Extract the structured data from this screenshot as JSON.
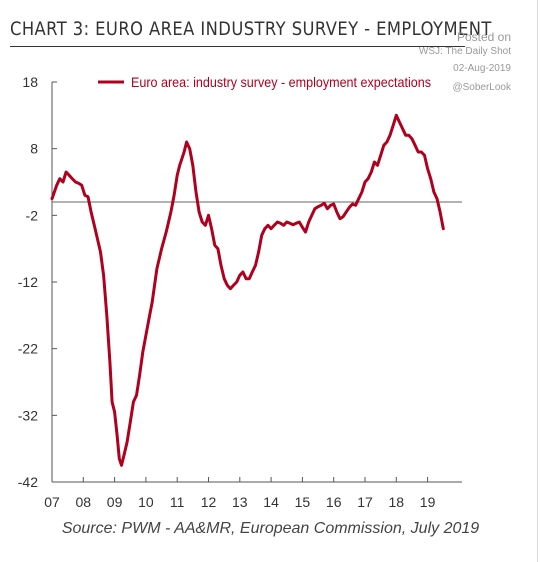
{
  "title": "CHART 3: EURO AREA INDUSTRY SURVEY - EMPLOYMENT",
  "watermark": {
    "line1": "Posted on",
    "line2": "WSJ: The Daily Shot",
    "line3": "02-Aug-2019",
    "line4": "@SoberLook"
  },
  "source": "Source: PWM - AA&MR, European Commission, July 2019",
  "colors": {
    "series": "#b0001e",
    "axis": "#555555",
    "text": "#333333"
  },
  "chart_data": {
    "type": "line",
    "legend_position": "top",
    "grid": false,
    "ylim": [
      -42,
      18
    ],
    "yticks": [
      18,
      8,
      -2,
      -12,
      -22,
      -32,
      -42
    ],
    "xticks": [
      "07",
      "08",
      "09",
      "10",
      "11",
      "12",
      "13",
      "14",
      "15",
      "16",
      "17",
      "18",
      "19"
    ],
    "xlim": [
      2007.0,
      2019.8
    ],
    "series": [
      {
        "name": "Euro area: industry survey - employment expectations",
        "color": "#b0001e",
        "x": [
          2007.0,
          2007.15,
          2007.25,
          2007.35,
          2007.45,
          2007.55,
          2007.65,
          2007.75,
          2007.85,
          2007.95,
          2008.05,
          2008.15,
          2008.25,
          2008.35,
          2008.45,
          2008.55,
          2008.65,
          2008.75,
          2008.85,
          2008.92,
          2009.0,
          2009.08,
          2009.15,
          2009.22,
          2009.3,
          2009.4,
          2009.5,
          2009.6,
          2009.7,
          2009.8,
          2009.9,
          2010.0,
          2010.1,
          2010.2,
          2010.35,
          2010.5,
          2010.65,
          2010.8,
          2010.9,
          2011.0,
          2011.08,
          2011.15,
          2011.22,
          2011.3,
          2011.4,
          2011.5,
          2011.6,
          2011.7,
          2011.8,
          2011.9,
          2012.0,
          2012.1,
          2012.2,
          2012.3,
          2012.4,
          2012.5,
          2012.6,
          2012.7,
          2012.8,
          2012.9,
          2013.0,
          2013.1,
          2013.2,
          2013.3,
          2013.4,
          2013.5,
          2013.6,
          2013.7,
          2013.8,
          2013.9,
          2014.0,
          2014.1,
          2014.2,
          2014.3,
          2014.4,
          2014.5,
          2014.6,
          2014.7,
          2014.8,
          2014.9,
          2015.0,
          2015.1,
          2015.2,
          2015.3,
          2015.4,
          2015.5,
          2015.6,
          2015.7,
          2015.8,
          2015.9,
          2016.0,
          2016.1,
          2016.2,
          2016.3,
          2016.4,
          2016.5,
          2016.6,
          2016.7,
          2016.8,
          2016.9,
          2017.0,
          2017.1,
          2017.2,
          2017.3,
          2017.4,
          2017.5,
          2017.6,
          2017.7,
          2017.8,
          2017.9,
          2018.0,
          2018.1,
          2018.2,
          2018.3,
          2018.4,
          2018.5,
          2018.6,
          2018.7,
          2018.8,
          2018.9,
          2019.0,
          2019.1,
          2019.2,
          2019.3,
          2019.4,
          2019.5
        ],
        "values": [
          0.5,
          2.5,
          3.5,
          3.0,
          4.5,
          4.0,
          3.5,
          3.0,
          2.8,
          2.5,
          1.0,
          0.8,
          -1.5,
          -3.5,
          -5.5,
          -7.5,
          -11.0,
          -17.0,
          -24.0,
          -30.0,
          -31.5,
          -35.0,
          -38.5,
          -39.5,
          -38.0,
          -36.0,
          -33.0,
          -30.0,
          -29.0,
          -26.0,
          -22.5,
          -20.0,
          -17.5,
          -15.0,
          -10.0,
          -7.0,
          -4.5,
          -1.5,
          1.0,
          4.0,
          5.5,
          6.5,
          7.5,
          9.0,
          8.0,
          5.5,
          1.5,
          -1.5,
          -3.0,
          -3.5,
          -2.0,
          -4.0,
          -6.5,
          -7.0,
          -9.5,
          -11.5,
          -12.5,
          -13.0,
          -12.5,
          -12.0,
          -11.0,
          -10.5,
          -11.5,
          -11.5,
          -10.5,
          -9.5,
          -7.5,
          -5.0,
          -4.0,
          -3.5,
          -4.0,
          -3.5,
          -3.0,
          -3.2,
          -3.5,
          -3.0,
          -3.2,
          -3.4,
          -3.2,
          -3.0,
          -3.8,
          -4.5,
          -3.0,
          -2.0,
          -1.0,
          -0.7,
          -0.5,
          -0.2,
          -1.0,
          -0.5,
          -0.3,
          -1.5,
          -2.5,
          -2.2,
          -1.5,
          -0.8,
          -0.3,
          -0.5,
          0.5,
          1.5,
          3.0,
          3.5,
          4.5,
          6.0,
          5.5,
          7.0,
          8.5,
          9.0,
          10.0,
          11.5,
          13.0,
          12.0,
          11.0,
          10.0,
          10.0,
          9.5,
          8.5,
          7.5,
          7.5,
          7.0,
          5.0,
          3.5,
          1.5,
          0.5,
          -1.5,
          -4.0
        ]
      }
    ]
  }
}
